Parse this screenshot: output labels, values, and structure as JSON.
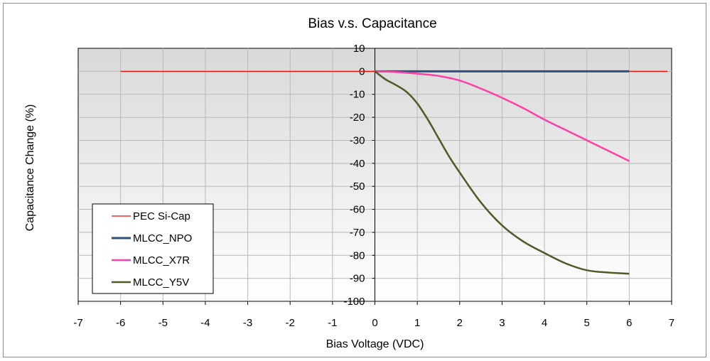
{
  "chart_data": {
    "type": "line",
    "title": "Bias v.s. Capacitance",
    "xlabel": "Bias Voltage (VDC)",
    "ylabel": "Capacitance Change (%)",
    "xlim": [
      -7,
      7
    ],
    "ylim": [
      -100,
      10
    ],
    "xticks": [
      -7,
      -6,
      -5,
      -4,
      -3,
      -2,
      -1,
      0,
      1,
      2,
      3,
      4,
      5,
      6,
      7
    ],
    "yticks": [
      10,
      0,
      -10,
      -20,
      -30,
      -40,
      -50,
      -60,
      -70,
      -80,
      -90,
      -100
    ],
    "grid": true,
    "legend_position": "bottom-left",
    "background": "#ffffff",
    "plot_area_gradient": [
      "#d9d9d9",
      "#ffffff"
    ],
    "series": [
      {
        "name": "PEC Si-Cap",
        "color": "#ff0000",
        "width": 1.2,
        "x": [
          -6,
          7
        ],
        "y": [
          0,
          0
        ],
        "x_display": [
          -6,
          6.9
        ]
      },
      {
        "name": "MLCC_NPO",
        "color": "#2f4f7f",
        "width": 3,
        "x": [
          0,
          1,
          2,
          3,
          4,
          5,
          6
        ],
        "y": [
          0,
          0,
          0,
          0,
          0,
          0,
          0
        ]
      },
      {
        "name": "MLCC_X7R",
        "color": "#ff3fa8",
        "width": 2.5,
        "x": [
          0,
          0.5,
          1,
          1.5,
          2,
          2.5,
          3,
          3.5,
          4,
          4.5,
          5,
          5.5,
          6
        ],
        "y": [
          0,
          -0.3,
          -1,
          -2,
          -4,
          -7.5,
          -11.5,
          -16,
          -21,
          -25.5,
          -30,
          -34.5,
          -39
        ]
      },
      {
        "name": "MLCC_Y5V",
        "color": "#4f5a26",
        "width": 2.5,
        "x": [
          0,
          0.25,
          0.5,
          0.75,
          1,
          1.25,
          1.5,
          1.75,
          2,
          2.5,
          3,
          3.5,
          4,
          4.5,
          5,
          5.5,
          6
        ],
        "y": [
          0,
          -3.5,
          -6,
          -9,
          -14,
          -21,
          -29,
          -37,
          -44,
          -57,
          -67,
          -74,
          -79,
          -83.5,
          -86.5,
          -87.5,
          -88
        ]
      }
    ]
  }
}
